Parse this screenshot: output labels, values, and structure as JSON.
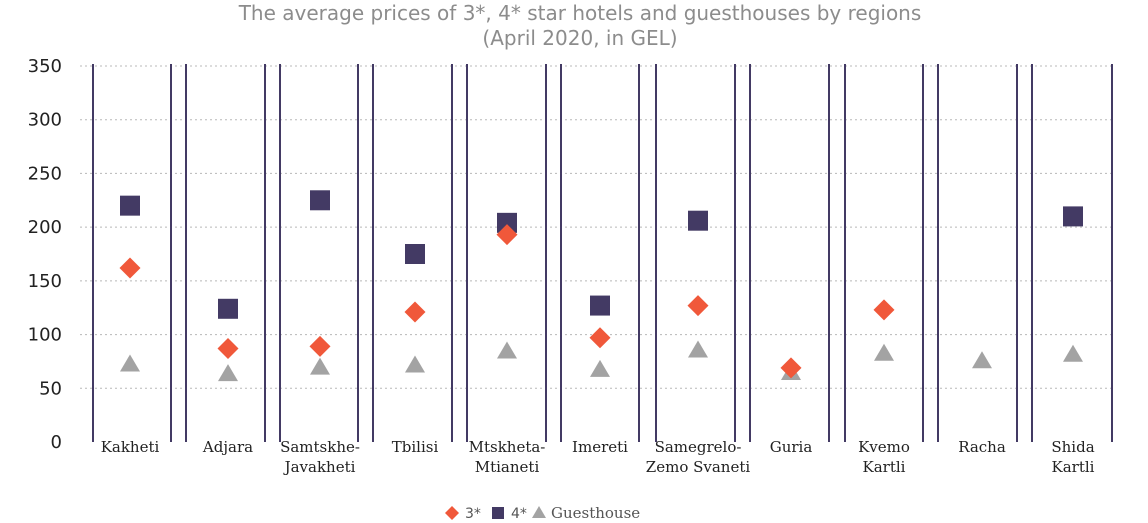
{
  "chart_data": {
    "type": "scatter",
    "title": "The average prices of 3*, 4* star hotels and guesthouses by regions",
    "subtitle": "(April 2020, in GEL)",
    "xlabel": "",
    "ylabel": "",
    "ylim": [
      0,
      350
    ],
    "yticks": [
      "350",
      "300",
      "250",
      "200",
      "150",
      "100",
      "50",
      "0"
    ],
    "grid": true,
    "legend_position": "bottom-center",
    "categories": [
      [
        "Kakheti"
      ],
      [
        "Adjara"
      ],
      [
        "Samtskhe-",
        "Javakheti"
      ],
      [
        "Tbilisi"
      ],
      [
        "Mtskheta-",
        "Mtianeti"
      ],
      [
        "Imereti"
      ],
      [
        "Samegrelo-",
        "Zemo Svaneti"
      ],
      [
        "Guria"
      ],
      [
        "Kvemo",
        "Kartli"
      ],
      [
        "Racha"
      ],
      [
        "Shida",
        "Kartli"
      ]
    ],
    "series": [
      {
        "name": "3*",
        "marker": "diamond",
        "color": "#f0583a",
        "values": [
          162,
          87,
          89,
          121,
          193,
          97,
          127,
          69,
          123,
          null,
          null
        ]
      },
      {
        "name": "4*",
        "marker": "square",
        "color": "#433a64",
        "values": [
          220,
          124,
          225,
          175,
          204,
          127,
          206,
          null,
          null,
          null,
          210
        ]
      },
      {
        "name": "Guesthouse",
        "marker": "triangle",
        "color": "#a3a3a3",
        "values": [
          72,
          63,
          69,
          71,
          84,
          67,
          85,
          64,
          82,
          75,
          81
        ]
      }
    ]
  }
}
